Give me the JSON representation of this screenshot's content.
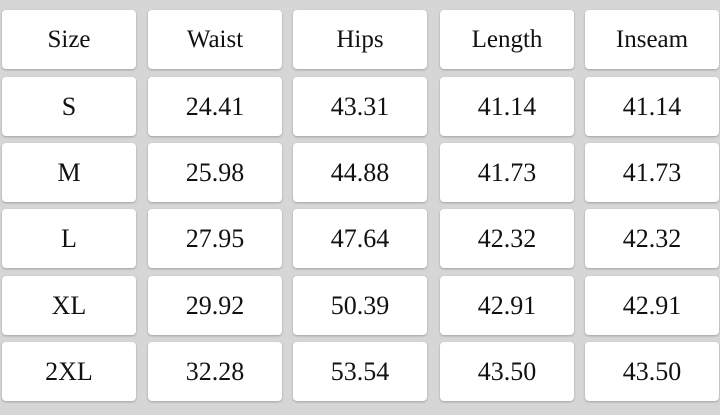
{
  "table": {
    "header": [
      "Size",
      "Waist",
      "Hips",
      "Length",
      "Inseam"
    ],
    "rows": [
      [
        "S",
        "24.41",
        "43.31",
        "41.14",
        "41.14"
      ],
      [
        "M",
        "25.98",
        "44.88",
        "41.73",
        "41.73"
      ],
      [
        "L",
        "27.95",
        "47.64",
        "42.32",
        "42.32"
      ],
      [
        "XL",
        "29.92",
        "50.39",
        "42.91",
        "42.91"
      ],
      [
        "2XL",
        "32.28",
        "53.54",
        "43.50",
        "43.50"
      ]
    ]
  }
}
